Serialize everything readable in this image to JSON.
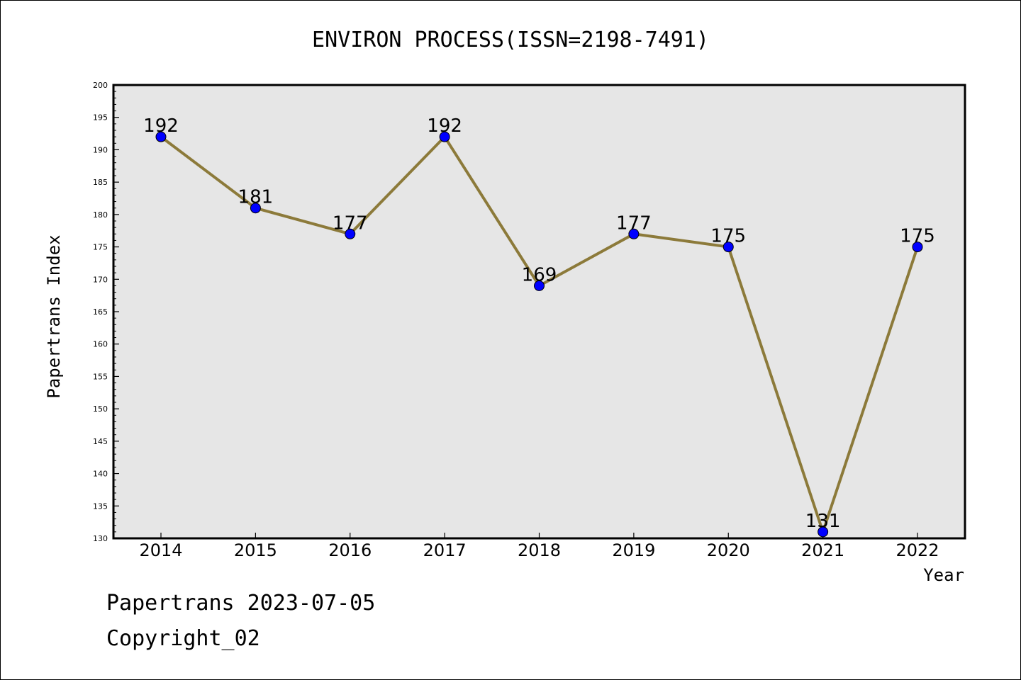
{
  "footer": {
    "line1": "Papertrans 2023-07-05",
    "line2": "Copyright_02"
  },
  "chart_data": {
    "type": "line",
    "title": "ENVIRON PROCESS(ISSN=2198-7491)",
    "xlabel": "Year",
    "ylabel": "Papertrans Index",
    "categories": [
      "2014",
      "2015",
      "2016",
      "2017",
      "2018",
      "2019",
      "2020",
      "2021",
      "2022"
    ],
    "series": [
      {
        "values": [
          192,
          181,
          177,
          192,
          169,
          177,
          175,
          131,
          175
        ],
        "line_color": "#8c7a3a",
        "marker_color": "#0000ff"
      }
    ],
    "ylim": [
      130,
      200
    ],
    "ytick_step": 5,
    "grid": false,
    "plot_background": "#e6e6e6",
    "data_labels": true
  }
}
